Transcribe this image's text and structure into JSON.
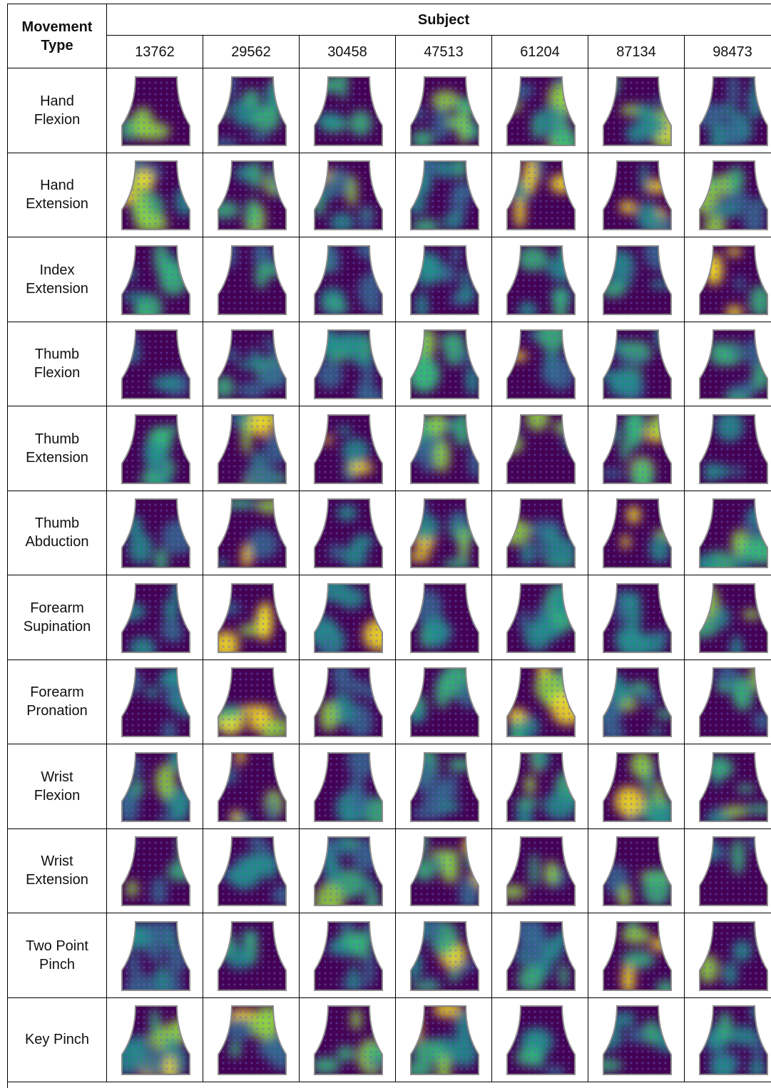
{
  "header": {
    "row_header": "Movement Type",
    "column_group": "Subject",
    "subjects": [
      "13762",
      "29562",
      "30458",
      "47513",
      "61204",
      "87134",
      "98473"
    ]
  },
  "movements": [
    "Hand Flexion",
    "Hand Extension",
    "Index Extension",
    "Thumb Flexion",
    "Thumb Extension",
    "Thumb Abduction",
    "Forearm Supination",
    "Forearm Pronation",
    "Wrist Flexion",
    "Wrist Extension",
    "Two Point Pinch",
    "Key Pinch"
  ]
}
